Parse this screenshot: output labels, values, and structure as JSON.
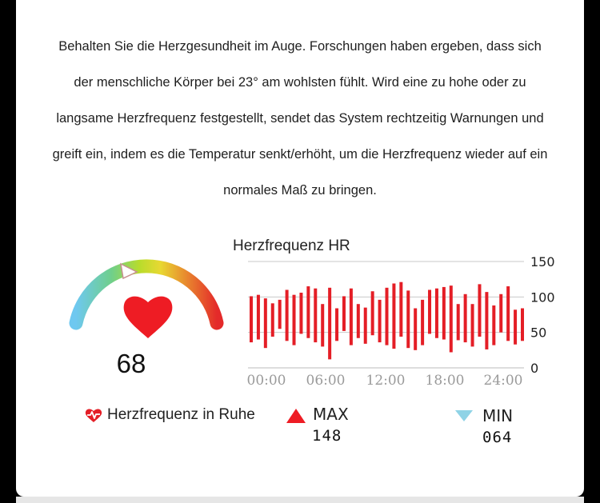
{
  "description": {
    "lines": [
      "Behalten Sie die Herzgesundheit im Auge. Forschungen haben ergeben, dass sich",
      "der menschliche Körper bei 23° am wohlsten fühlt. Wird eine zu hohe oder zu",
      "langsame Herzfrequenz festgestellt, sendet das System rechtzeitig Warnungen und",
      "greift ein, indem es die Temperatur senkt/erhöht, um die Herzfrequenz wieder auf ein",
      "normales Maß zu bringen."
    ]
  },
  "gauge": {
    "value": "68",
    "heart_color": "#ee1c24",
    "icons": {
      "heart": "heart-icon",
      "pointer": "gauge-pointer-icon"
    }
  },
  "legend": {
    "rest_label": "Herzfrequenz in Ruhe",
    "max_label": "MAX",
    "max_value": "148",
    "min_label": "MIN",
    "min_value": "064",
    "colors": {
      "max": "#ee1c24",
      "min": "#8fd3e6"
    }
  },
  "chart_data": {
    "type": "bar",
    "title": "Herzfrequenz HR",
    "xlabel": "",
    "ylabel": "",
    "x_ticks": [
      "00:00",
      "06:00",
      "12:00",
      "18:00",
      "24:00"
    ],
    "y_ticks": [
      0,
      50,
      100,
      150
    ],
    "ylim": [
      0,
      150
    ],
    "x_range": [
      "00:00",
      "24:00"
    ],
    "grid": "horizontal",
    "bar_color": "#e41e26",
    "bars": [
      {
        "low": 36,
        "high": 101
      },
      {
        "low": 40,
        "high": 103
      },
      {
        "low": 28,
        "high": 98
      },
      {
        "low": 44,
        "high": 91
      },
      {
        "low": 55,
        "high": 96
      },
      {
        "low": 38,
        "high": 110
      },
      {
        "low": 32,
        "high": 103
      },
      {
        "low": 48,
        "high": 106
      },
      {
        "low": 42,
        "high": 115
      },
      {
        "low": 36,
        "high": 112
      },
      {
        "low": 30,
        "high": 90
      },
      {
        "low": 12,
        "high": 113
      },
      {
        "low": 38,
        "high": 84
      },
      {
        "low": 52,
        "high": 101
      },
      {
        "low": 32,
        "high": 112
      },
      {
        "low": 42,
        "high": 90
      },
      {
        "low": 34,
        "high": 85
      },
      {
        "low": 46,
        "high": 108
      },
      {
        "low": 36,
        "high": 96
      },
      {
        "low": 32,
        "high": 113
      },
      {
        "low": 27,
        "high": 119
      },
      {
        "low": 44,
        "high": 121
      },
      {
        "low": 28,
        "high": 109
      },
      {
        "low": 25,
        "high": 84
      },
      {
        "low": 32,
        "high": 96
      },
      {
        "low": 48,
        "high": 110
      },
      {
        "low": 42,
        "high": 112
      },
      {
        "low": 40,
        "high": 114
      },
      {
        "low": 22,
        "high": 116
      },
      {
        "low": 39,
        "high": 90
      },
      {
        "low": 36,
        "high": 104
      },
      {
        "low": 30,
        "high": 90
      },
      {
        "low": 44,
        "high": 118
      },
      {
        "low": 26,
        "high": 107
      },
      {
        "low": 32,
        "high": 88
      },
      {
        "low": 50,
        "high": 104
      },
      {
        "low": 38,
        "high": 115
      },
      {
        "low": 33,
        "high": 82
      },
      {
        "low": 38,
        "high": 84
      }
    ]
  }
}
